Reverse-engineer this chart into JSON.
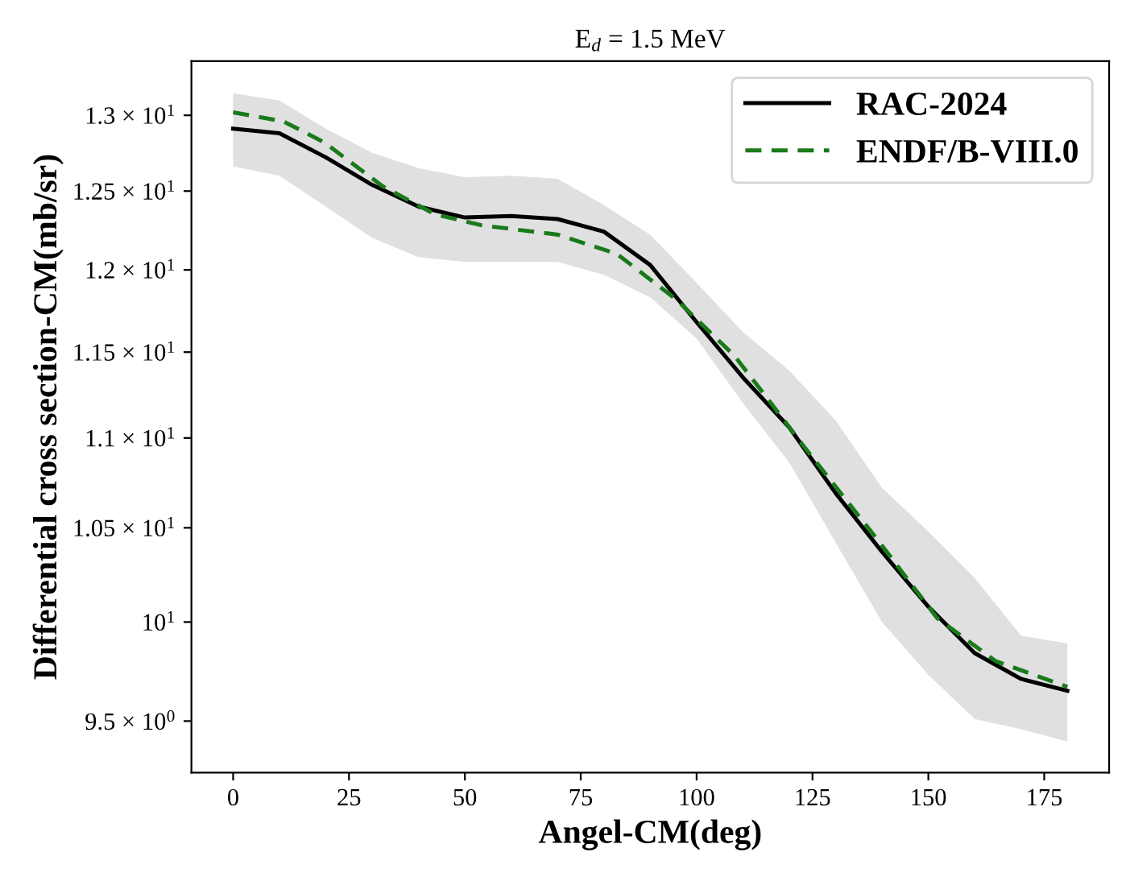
{
  "chart_data": {
    "type": "line",
    "title": "E$_{d}$ = 1.5 MeV",
    "xlabel": "Angel-CM(deg)",
    "ylabel": "Differential cross section-CM(mb/sr)",
    "log": "y",
    "xlim": [
      -9,
      189
    ],
    "xticks": [
      0,
      25,
      50,
      75,
      100,
      125,
      150,
      175
    ],
    "ylim": [
      9.25,
      13.37
    ],
    "yticks": [
      {
        "value": 9.5,
        "label": "9.5 × 10$^{0}$"
      },
      {
        "value": 10,
        "label": "10$^{1}$"
      },
      {
        "value": 10.5,
        "label": "1.05 × 10$^{1}$"
      },
      {
        "value": 11,
        "label": "1.1 × 10$^{1}$"
      },
      {
        "value": 11.5,
        "label": "1.15 × 10$^{1}$"
      },
      {
        "value": 12,
        "label": "1.2 × 10$^{1}$"
      },
      {
        "value": 12.5,
        "label": "1.25 × 10$^{1}$"
      },
      {
        "value": 13,
        "label": "1.3 × 10$^{1}$"
      }
    ],
    "grid": false,
    "legend": "top right",
    "marker": "none",
    "series": [
      {
        "name": "RAC-2024",
        "color": "#000000",
        "line_style": "solid",
        "x": [
          0,
          10,
          20,
          30,
          40,
          50,
          60,
          70,
          80,
          90,
          100,
          110,
          120,
          130,
          140,
          150,
          160,
          170,
          180
        ],
        "values": [
          12.91,
          12.88,
          12.72,
          12.54,
          12.4,
          12.33,
          12.34,
          12.32,
          12.24,
          12.03,
          11.68,
          11.35,
          11.06,
          10.69,
          10.37,
          10.08,
          9.84,
          9.71,
          9.65
        ],
        "upper": [
          13.15,
          13.1,
          12.91,
          12.75,
          12.65,
          12.59,
          12.6,
          12.58,
          12.41,
          12.22,
          11.92,
          11.62,
          11.39,
          11.1,
          10.72,
          10.48,
          10.23,
          9.93,
          9.89
        ],
        "lower": [
          12.66,
          12.6,
          12.4,
          12.2,
          12.08,
          12.05,
          12.05,
          12.05,
          11.97,
          11.83,
          11.58,
          11.2,
          10.86,
          10.42,
          10.0,
          9.73,
          9.51,
          9.46,
          9.4
        ]
      },
      {
        "name": "ENDF/B-VIII.0",
        "color": "#1a7a1a",
        "line_style": "dashed",
        "x": [
          0,
          10.8,
          19.6,
          32.3,
          43.6,
          53.7,
          70.2,
          82.8,
          95.5,
          108.1,
          115.2,
          123.2,
          139.2,
          151.9,
          164.5,
          180
        ],
        "values": [
          13.02,
          12.96,
          12.82,
          12.53,
          12.35,
          12.28,
          12.22,
          12.1,
          11.82,
          11.48,
          11.23,
          10.95,
          10.43,
          10.02,
          9.8,
          9.67
        ]
      }
    ]
  }
}
